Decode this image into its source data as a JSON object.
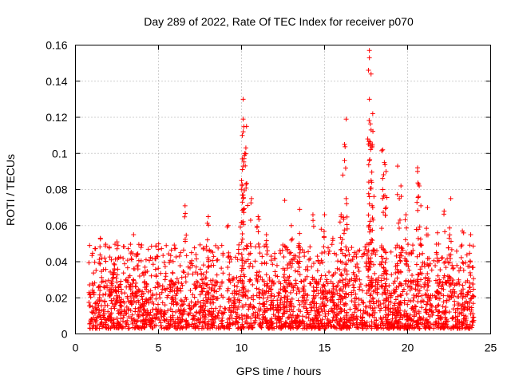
{
  "chart_data": {
    "type": "scatter",
    "title": "Day 289 of 2022, Rate Of TEC Index for receiver p070",
    "xlabel": "GPS time / hours",
    "ylabel": "ROTI / TECUs",
    "xlim": [
      0,
      25
    ],
    "ylim": [
      0,
      0.16
    ],
    "xticks": [
      0,
      5,
      10,
      15,
      20,
      25
    ],
    "xtick_labels": [
      "0",
      "5",
      "10",
      "15",
      "20",
      "25"
    ],
    "yticks": [
      0,
      0.02,
      0.04,
      0.06,
      0.08,
      0.1,
      0.12,
      0.14,
      0.16
    ],
    "ytick_labels": [
      "0",
      "0.02",
      "0.04",
      "0.06",
      "0.08",
      "0.1",
      "0.12",
      "0.14",
      "0.16"
    ],
    "grid": true,
    "marker": "+",
    "series": [
      {
        "name": "ROTI",
        "color": "#ff0000",
        "x_range": [
          0.8,
          24.0
        ],
        "baseline_band": [
          0.003,
          0.03
        ],
        "points": [
          [
            1.5,
            0.053
          ],
          [
            2.5,
            0.051
          ],
          [
            3.5,
            0.055
          ],
          [
            6.6,
            0.071
          ],
          [
            8.0,
            0.065
          ],
          [
            9.2,
            0.06
          ],
          [
            10.1,
            0.13
          ],
          [
            10.1,
            0.119
          ],
          [
            10.3,
            0.115
          ],
          [
            10.1,
            0.112
          ],
          [
            10.2,
            0.1
          ],
          [
            10.05,
            0.097
          ],
          [
            10.1,
            0.093
          ],
          [
            10.0,
            0.085
          ],
          [
            10.6,
            0.075
          ],
          [
            11.0,
            0.065
          ],
          [
            12.6,
            0.074
          ],
          [
            13.5,
            0.069
          ],
          [
            14.3,
            0.066
          ],
          [
            15.0,
            0.066
          ],
          [
            16.3,
            0.119
          ],
          [
            16.2,
            0.105
          ],
          [
            16.1,
            0.088
          ],
          [
            16.3,
            0.075
          ],
          [
            16.0,
            0.066
          ],
          [
            17.7,
            0.157
          ],
          [
            17.7,
            0.153
          ],
          [
            17.8,
            0.144
          ],
          [
            17.7,
            0.13
          ],
          [
            17.9,
            0.122
          ],
          [
            17.8,
            0.113
          ],
          [
            17.6,
            0.108
          ],
          [
            17.7,
            0.096
          ],
          [
            17.8,
            0.085
          ],
          [
            17.7,
            0.076
          ],
          [
            17.9,
            0.07
          ],
          [
            18.5,
            0.102
          ],
          [
            18.6,
            0.095
          ],
          [
            18.7,
            0.09
          ],
          [
            18.5,
            0.08
          ],
          [
            18.7,
            0.07
          ],
          [
            19.4,
            0.093
          ],
          [
            19.6,
            0.082
          ],
          [
            19.5,
            0.075
          ],
          [
            19.9,
            0.066
          ],
          [
            20.6,
            0.092
          ],
          [
            20.6,
            0.09
          ],
          [
            20.7,
            0.082
          ],
          [
            20.8,
            0.071
          ],
          [
            21.2,
            0.07
          ],
          [
            22.2,
            0.068
          ],
          [
            22.6,
            0.075
          ],
          [
            23.3,
            0.057
          ],
          [
            23.8,
            0.055
          ],
          [
            11.5,
            0.055
          ],
          [
            13.0,
            0.06
          ],
          [
            14.8,
            0.058
          ],
          [
            15.5,
            0.053
          ],
          [
            21.8,
            0.056
          ],
          [
            22.5,
            0.053
          ]
        ]
      }
    ]
  }
}
